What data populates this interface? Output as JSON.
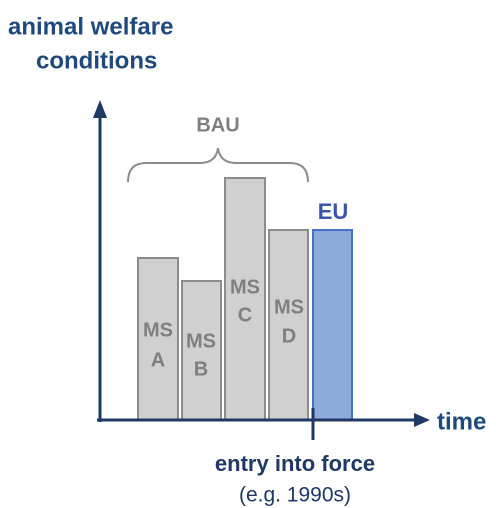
{
  "y_axis": {
    "label": [
      "animal welfare",
      "conditions"
    ]
  },
  "x_axis": {
    "label": "time"
  },
  "group": {
    "label": "BAU"
  },
  "bars": [
    {
      "label": [
        "MS",
        "A"
      ]
    },
    {
      "label": [
        "MS",
        "B"
      ]
    },
    {
      "label": [
        "MS",
        "C"
      ]
    },
    {
      "label": [
        "MS",
        "D"
      ]
    },
    {
      "label": [
        "EU"
      ]
    }
  ],
  "marker": {
    "label": "entry into force",
    "note": "(e.g. 1990s)"
  }
}
